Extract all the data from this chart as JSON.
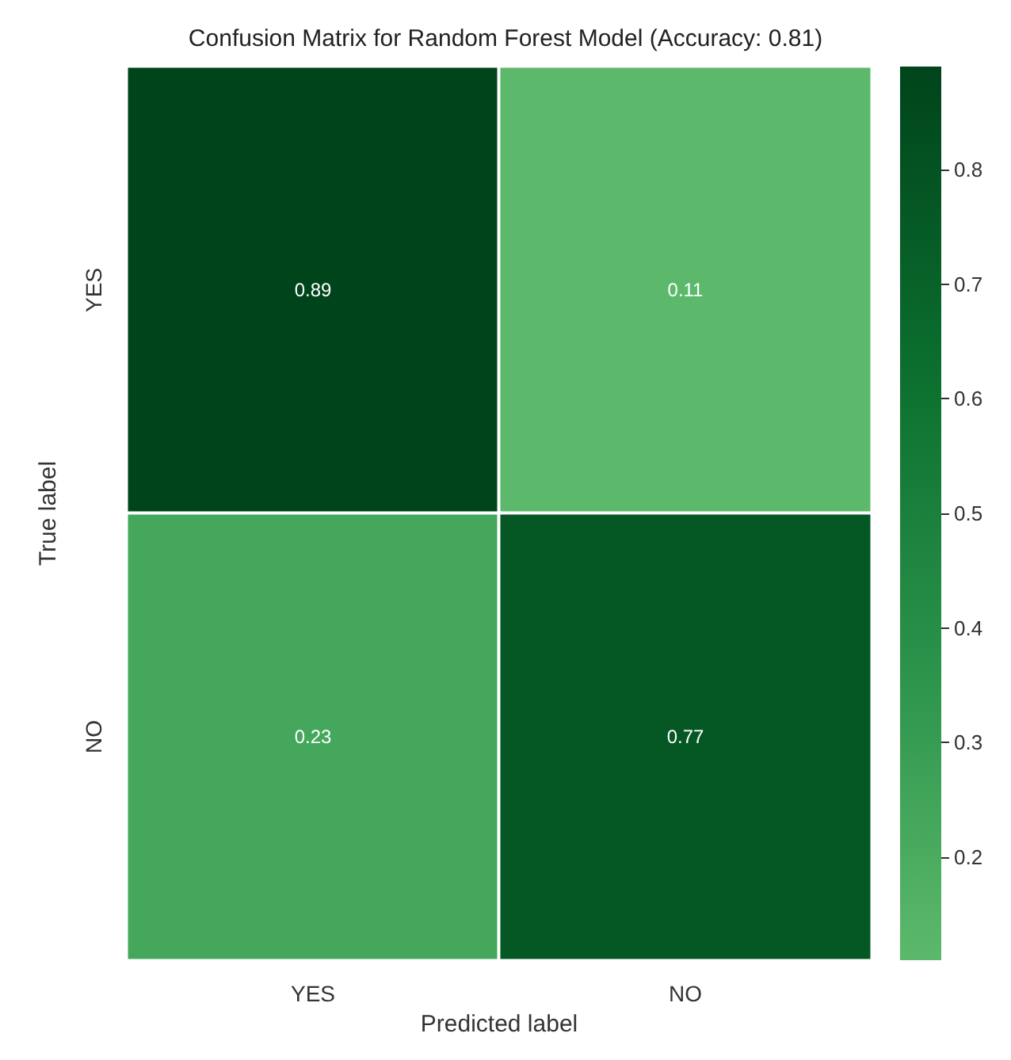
{
  "chart_data": {
    "type": "heatmap",
    "title": "Confusion Matrix for Random Forest Model (Accuracy: 0.81)",
    "xlabel": "Predicted label",
    "ylabel": "True label",
    "categories": [
      "YES",
      "NO"
    ],
    "y_categories": [
      "YES",
      "NO"
    ],
    "cells": [
      [
        0.89,
        0.11
      ],
      [
        0.23,
        0.77
      ]
    ],
    "clim": [
      0.11,
      0.89
    ],
    "cticks": [
      0.2,
      0.3,
      0.4,
      0.5,
      0.6,
      0.7,
      0.8
    ],
    "colors": [
      "#5cb96b",
      "#2a924a",
      "#0b6e2e",
      "#00441b"
    ],
    "data_labels": true
  }
}
